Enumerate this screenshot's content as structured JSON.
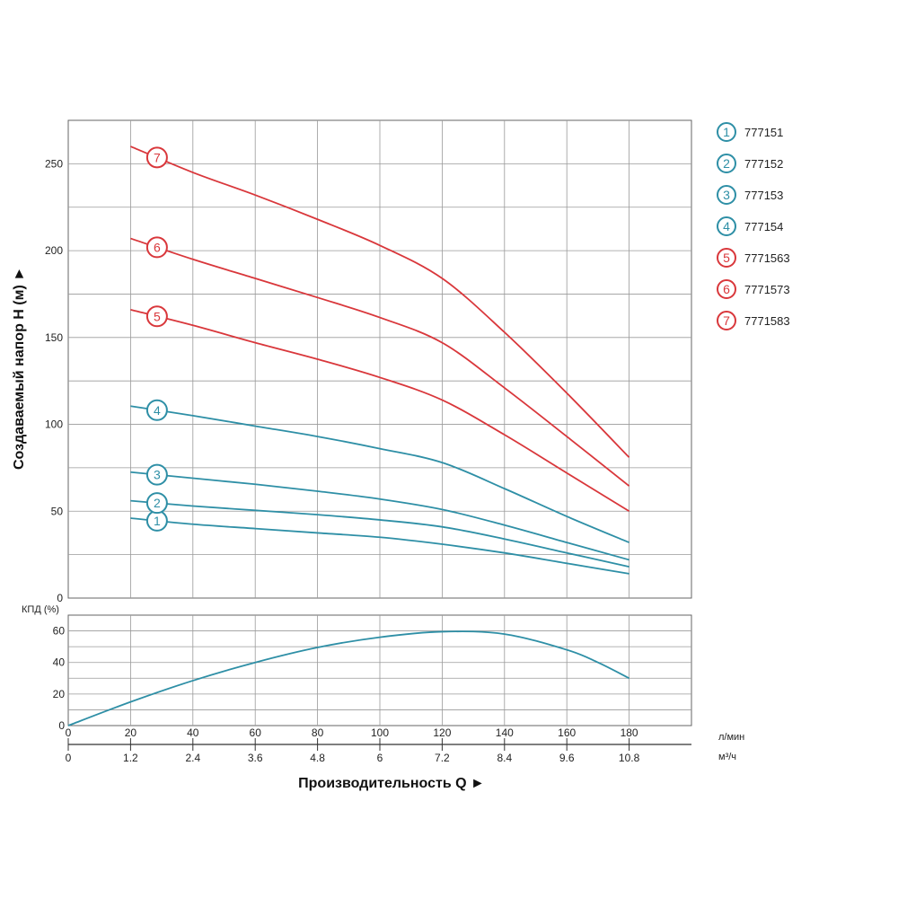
{
  "chart_data": [
    {
      "type": "line",
      "ylabel": "Создаваемый напор Н (м) ►",
      "ylim": [
        0,
        275
      ],
      "yticks": [
        0,
        50,
        100,
        150,
        200,
        250
      ],
      "xlim": [
        0,
        200
      ],
      "series": [
        {
          "name": "777151",
          "marker": "1",
          "color": "#2e8fa6",
          "x": [
            20,
            40,
            60,
            80,
            100,
            120,
            140,
            160,
            180
          ],
          "y": [
            46,
            42.5,
            40,
            37.5,
            35,
            31,
            26,
            20,
            14
          ]
        },
        {
          "name": "777152",
          "marker": "2",
          "color": "#2e8fa6",
          "x": [
            20,
            40,
            60,
            80,
            100,
            120,
            140,
            160,
            180
          ],
          "y": [
            56,
            53,
            50.5,
            48,
            45,
            41,
            34,
            26,
            18
          ]
        },
        {
          "name": "777153",
          "marker": "3",
          "color": "#2e8fa6",
          "x": [
            20,
            40,
            60,
            80,
            100,
            120,
            140,
            160,
            180
          ],
          "y": [
            72.5,
            69,
            65.5,
            61.5,
            57,
            51,
            42,
            32,
            22
          ]
        },
        {
          "name": "777154",
          "marker": "4",
          "color": "#2e8fa6",
          "x": [
            20,
            40,
            60,
            80,
            100,
            120,
            140,
            160,
            180
          ],
          "y": [
            110.5,
            105,
            99,
            93,
            86,
            78,
            63,
            47,
            32
          ]
        },
        {
          "name": "7771563",
          "marker": "5",
          "color": "#d9373b",
          "x": [
            20,
            40,
            60,
            80,
            100,
            120,
            140,
            160,
            180
          ],
          "y": [
            166,
            157,
            147,
            137.5,
            127,
            114,
            94,
            72,
            50
          ]
        },
        {
          "name": "7771573",
          "marker": "6",
          "color": "#d9373b",
          "x": [
            20,
            40,
            60,
            80,
            100,
            120,
            140,
            160,
            180
          ],
          "y": [
            207,
            195,
            184,
            173,
            161.5,
            147,
            121,
            93,
            64.5
          ]
        },
        {
          "name": "7771583",
          "marker": "7",
          "color": "#d9373b",
          "x": [
            20,
            40,
            60,
            80,
            100,
            120,
            140,
            160,
            180
          ],
          "y": [
            260,
            245,
            232,
            218,
            203,
            184,
            153,
            118,
            81
          ]
        }
      ],
      "legend_position": "right"
    },
    {
      "type": "line",
      "ylabel": "КПД (%)",
      "ylim": [
        0,
        70
      ],
      "yticks": [
        0,
        20,
        40,
        60
      ],
      "xlim": [
        0,
        200
      ],
      "series": [
        {
          "color": "#2e8fa6",
          "x": [
            0,
            20,
            40,
            60,
            80,
            100,
            120,
            140,
            160,
            170,
            180
          ],
          "y": [
            0,
            15,
            28.5,
            40,
            49.5,
            56,
            59.5,
            58,
            48,
            40,
            30
          ]
        }
      ]
    }
  ],
  "x_axis": {
    "lmin_ticks": [
      "0",
      "20",
      "40",
      "60",
      "80",
      "100",
      "120",
      "140",
      "160",
      "180"
    ],
    "m3h_ticks": [
      "0",
      "1.2",
      "2.4",
      "3.6",
      "4.8",
      "6",
      "7.2",
      "8.4",
      "9.6",
      "10.8"
    ],
    "unit_lmin": "л/мин",
    "unit_m3h": "м³/ч",
    "xlabel": "Производительность Q ►"
  }
}
